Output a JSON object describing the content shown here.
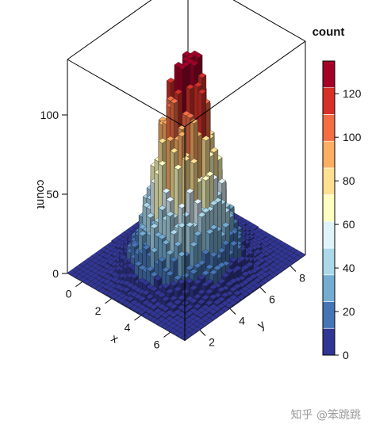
{
  "chart_data": {
    "type": "heatmap",
    "subtype": "3d-histogram",
    "value_name": "count",
    "xlabel": "x",
    "ylabel": "y",
    "zlabel": "count",
    "x_ticks": [
      0,
      2,
      4,
      6
    ],
    "y_ticks": [
      2,
      4,
      6,
      8
    ],
    "z_ticks": [
      0,
      50,
      100
    ],
    "xlim": [
      -1,
      7
    ],
    "ylim": [
      1,
      9
    ],
    "zlim": [
      0,
      135
    ],
    "peak_location": {
      "x": 3,
      "y": 5
    },
    "peak_count": 128,
    "spread_sd": {
      "x": 1.2,
      "y": 1.2
    },
    "grid_bins": 30,
    "colorbar": {
      "title": "count",
      "ticks": [
        0,
        20,
        40,
        60,
        80,
        100,
        120
      ],
      "range": [
        0,
        135
      ],
      "colors": [
        "#313695",
        "#4575b4",
        "#74add1",
        "#abd9e9",
        "#e0f3f8",
        "#ffffbf",
        "#fee090",
        "#fdae61",
        "#f46d43",
        "#d73027",
        "#a50026"
      ]
    }
  },
  "watermark": "知乎 @笨跳跳"
}
